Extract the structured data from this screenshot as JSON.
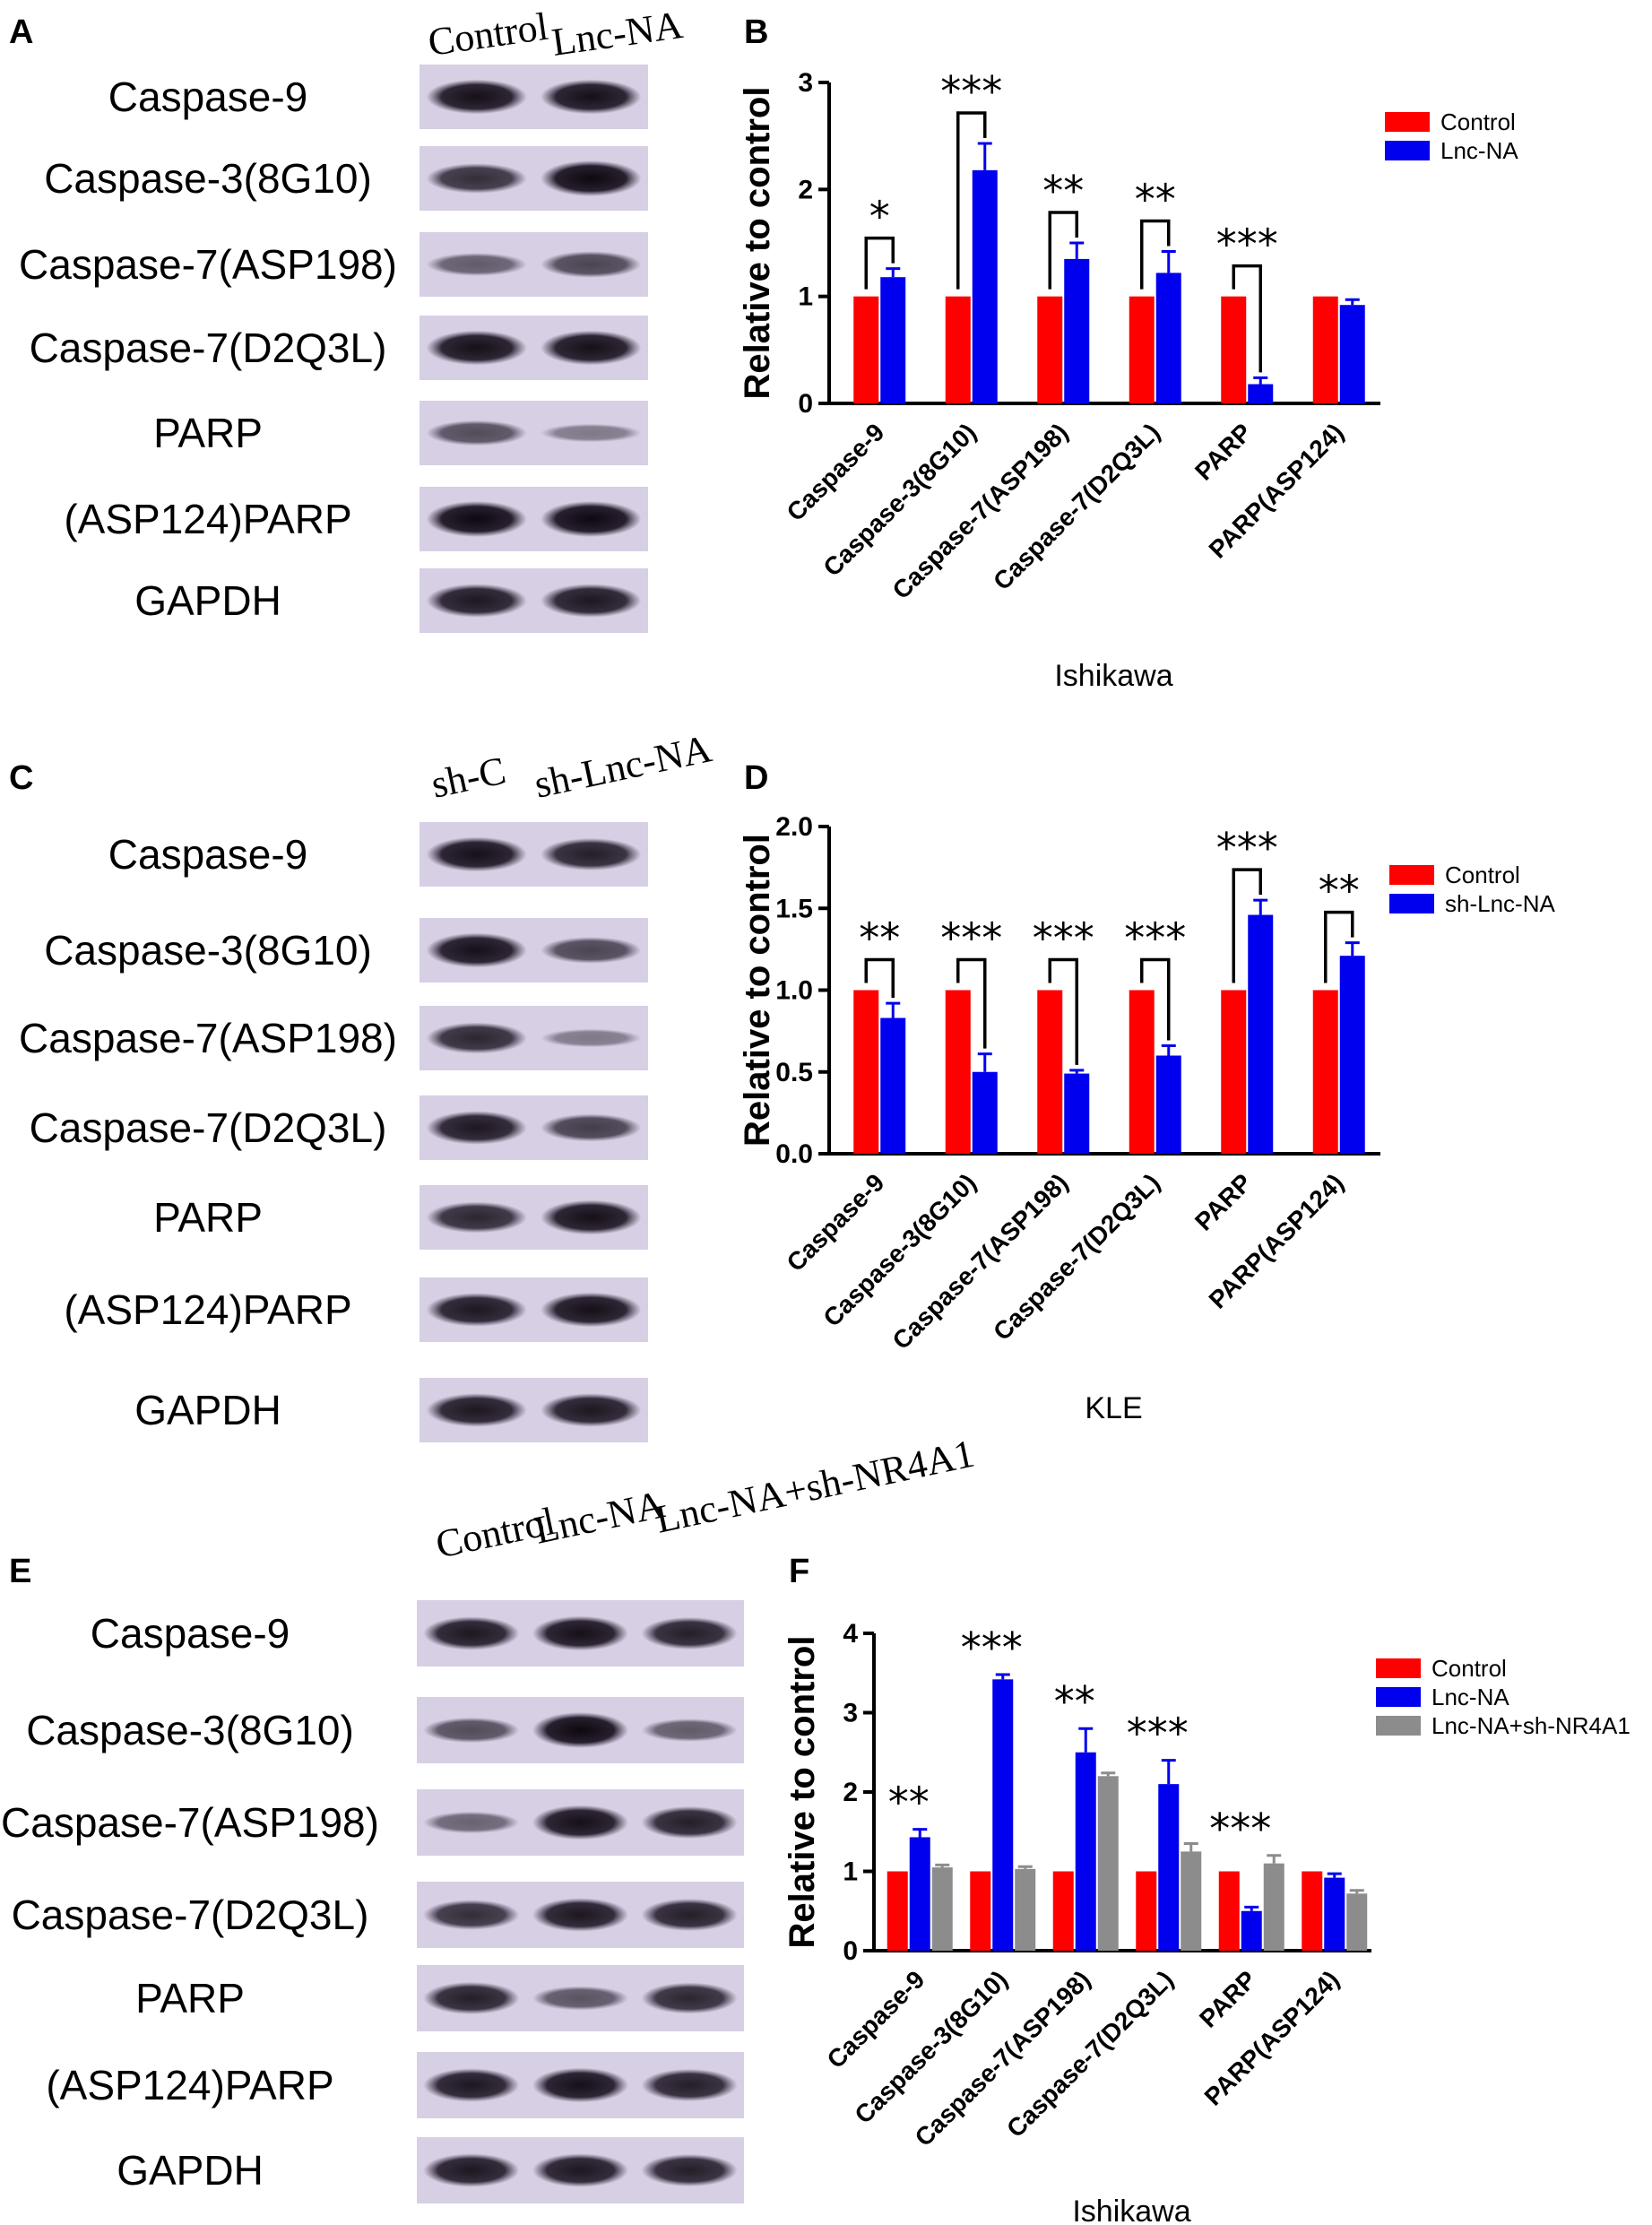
{
  "colors": {
    "control": "#ff0000",
    "treat": "#0000ee",
    "third": "#8c8c8c",
    "blot_bg": "#d7cfe4",
    "band": "#1c1420"
  },
  "blots": [
    {
      "letter": "A",
      "lanes": [
        "Control",
        "Lnc-NA"
      ],
      "rows": [
        {
          "label": "Caspase-9",
          "intensity": [
            0.95,
            0.95
          ]
        },
        {
          "label": "Caspase-3(8G10)",
          "intensity": [
            0.75,
            1.0
          ]
        },
        {
          "label": "Caspase-7(ASP198)",
          "intensity": [
            0.45,
            0.6
          ]
        },
        {
          "label": "Caspase-7(D2Q3L)",
          "intensity": [
            0.95,
            0.95
          ]
        },
        {
          "label": "PARP",
          "intensity": [
            0.55,
            0.25
          ]
        },
        {
          "label": "(ASP124)PARP",
          "intensity": [
            1.0,
            1.0
          ]
        },
        {
          "label": "GAPDH",
          "intensity": [
            0.9,
            0.9
          ]
        }
      ]
    },
    {
      "letter": "C",
      "lanes": [
        "sh-C",
        "sh-Lnc-NA"
      ],
      "rows": [
        {
          "label": "Caspase-9",
          "intensity": [
            0.95,
            0.85
          ]
        },
        {
          "label": "Caspase-3(8G10)",
          "intensity": [
            0.95,
            0.6
          ]
        },
        {
          "label": "Caspase-7(ASP198)",
          "intensity": [
            0.8,
            0.25
          ]
        },
        {
          "label": "Caspase-7(D2Q3L)",
          "intensity": [
            0.9,
            0.65
          ]
        },
        {
          "label": "PARP",
          "intensity": [
            0.8,
            0.95
          ]
        },
        {
          "label": "(ASP124)PARP",
          "intensity": [
            0.9,
            0.95
          ]
        },
        {
          "label": "GAPDH",
          "intensity": [
            0.9,
            0.9
          ]
        }
      ]
    },
    {
      "letter": "E",
      "lanes": [
        "Control",
        "Lnc-NA",
        "Lnc-NA+sh-NR4A1"
      ],
      "rows": [
        {
          "label": "Caspase-9",
          "intensity": [
            0.9,
            0.95,
            0.85
          ]
        },
        {
          "label": "Caspase-3(8G10)",
          "intensity": [
            0.55,
            1.0,
            0.45
          ]
        },
        {
          "label": "Caspase-7(ASP198)",
          "intensity": [
            0.4,
            0.95,
            0.85
          ]
        },
        {
          "label": "Caspase-7(D2Q3L)",
          "intensity": [
            0.75,
            0.9,
            0.85
          ]
        },
        {
          "label": "PARP",
          "intensity": [
            0.85,
            0.5,
            0.8
          ]
        },
        {
          "label": "(ASP124)PARP",
          "intensity": [
            0.9,
            0.95,
            0.85
          ]
        },
        {
          "label": "GAPDH",
          "intensity": [
            0.9,
            0.9,
            0.85
          ]
        }
      ]
    }
  ],
  "chart_data": [
    {
      "panel": "B",
      "type": "bar",
      "categories": [
        "Caspase-9",
        "Caspase-3(8G10)",
        "Caspase-7(ASP198)",
        "Caspase-7(D2Q3L)",
        "PARP",
        "PARP(ASP124)"
      ],
      "series": [
        {
          "name": "Control",
          "values": [
            1,
            1,
            1,
            1,
            1,
            1
          ],
          "errors": [
            0,
            0,
            0,
            0,
            0,
            0
          ]
        },
        {
          "name": "Lnc-NA",
          "values": [
            1.18,
            2.18,
            1.35,
            1.22,
            0.18,
            0.92
          ],
          "errors": [
            0.08,
            0.25,
            0.15,
            0.2,
            0.06,
            0.05
          ]
        }
      ],
      "significance": [
        "*",
        "***",
        "**",
        "**",
        "***",
        ""
      ],
      "ylabel": "Relative to control",
      "xlabel": "Ishikawa",
      "ylim": [
        0,
        3
      ],
      "yticks": [
        "0",
        "1",
        "2",
        "3"
      ],
      "legend": "top-right"
    },
    {
      "panel": "D",
      "type": "bar",
      "categories": [
        "Caspase-9",
        "Caspase-3(8G10)",
        "Caspase-7(ASP198)",
        "Caspase-7(D2Q3L)",
        "PARP",
        "PARP(ASP124)"
      ],
      "series": [
        {
          "name": "Control",
          "values": [
            1,
            1,
            1,
            1,
            1,
            1
          ],
          "errors": [
            0,
            0,
            0,
            0,
            0,
            0
          ]
        },
        {
          "name": "sh-Lnc-NA",
          "values": [
            0.83,
            0.5,
            0.49,
            0.6,
            1.46,
            1.21
          ],
          "errors": [
            0.09,
            0.11,
            0.02,
            0.06,
            0.09,
            0.08
          ]
        }
      ],
      "significance": [
        "**",
        "***",
        "***",
        "***",
        "***",
        "**"
      ],
      "ylabel": "Relative to control",
      "xlabel": "KLE",
      "ylim": [
        0,
        2
      ],
      "yticks": [
        "0.0",
        "0.5",
        "1.0",
        "1.5",
        "2.0"
      ],
      "legend": "top-right"
    },
    {
      "panel": "F",
      "type": "bar",
      "categories": [
        "Caspase-9",
        "Caspase-3(8G10)",
        "Caspase-7(ASP198)",
        "Caspase-7(D2Q3L)",
        "PARP",
        "PARP(ASP124)"
      ],
      "series": [
        {
          "name": "Control",
          "values": [
            1,
            1,
            1,
            1,
            1,
            1
          ],
          "errors": [
            0,
            0,
            0,
            0,
            0,
            0
          ]
        },
        {
          "name": "Lnc-NA",
          "values": [
            1.43,
            3.42,
            2.5,
            2.1,
            0.5,
            0.92
          ],
          "errors": [
            0.1,
            0.06,
            0.3,
            0.3,
            0.05,
            0.05
          ]
        },
        {
          "name": "Lnc-NA+sh-NR4A1",
          "values": [
            1.05,
            1.03,
            2.2,
            1.25,
            1.1,
            0.72
          ],
          "errors": [
            0.03,
            0.03,
            0.04,
            0.1,
            0.1,
            0.04
          ]
        }
      ],
      "significance": [
        "**",
        "***",
        "**",
        "***",
        "***",
        ""
      ],
      "ylabel": "Relative to control",
      "xlabel": "Ishikawa",
      "ylim": [
        0,
        4
      ],
      "yticks": [
        "0",
        "1",
        "2",
        "3",
        "4"
      ],
      "legend": "top-right"
    }
  ]
}
